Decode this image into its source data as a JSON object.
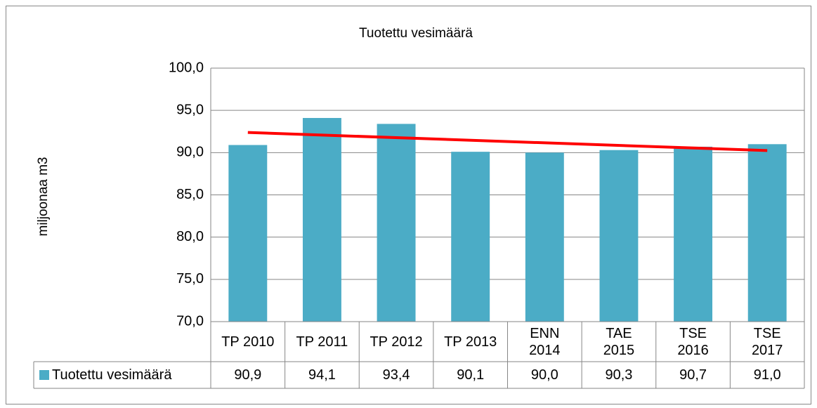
{
  "chart_data": {
    "type": "bar",
    "title": "Tuotettu vesimäärä",
    "y_label": "miljoonaa m3",
    "categories": [
      "TP 2010",
      "TP 2011",
      "TP 2012",
      "TP 2013",
      "ENN\n2014",
      "TAE\n2015",
      "TSE\n2016",
      "TSE\n2017"
    ],
    "series": [
      {
        "name": "Tuotettu vesimäärä",
        "color": "#4bacc6",
        "values": [
          90.9,
          94.1,
          93.4,
          90.1,
          90.0,
          90.3,
          90.7,
          91.0
        ],
        "value_labels": [
          "90,9",
          "94,1",
          "93,4",
          "90,1",
          "90,0",
          "90,3",
          "90,7",
          "91,0"
        ]
      }
    ],
    "trendline": {
      "kind": "linear",
      "color": "#ff0000"
    },
    "ylim": [
      70,
      100
    ],
    "yticks": [
      {
        "value": 70,
        "label": "70,0"
      },
      {
        "value": 75,
        "label": "75,0"
      },
      {
        "value": 80,
        "label": "80,0"
      },
      {
        "value": 85,
        "label": "85,0"
      },
      {
        "value": 90,
        "label": "90,0"
      },
      {
        "value": 95,
        "label": "95,0"
      },
      {
        "value": 100,
        "label": "100,0"
      }
    ],
    "grid": true,
    "data_table": true
  }
}
